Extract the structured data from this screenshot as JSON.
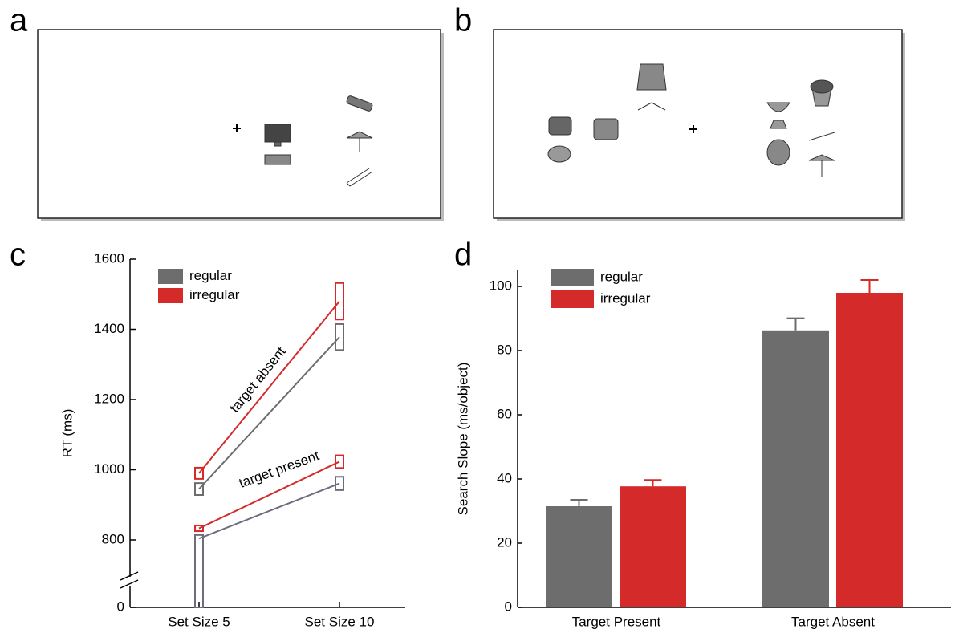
{
  "panel_labels": [
    "a",
    "b",
    "c",
    "d"
  ],
  "chart_data": [
    {
      "type": "line",
      "categories": [
        "Set Size 5",
        "Set Size 10"
      ],
      "ylabel": "RT (ms)",
      "ylim": [
        0,
        1600
      ],
      "yticks": [
        0,
        800,
        1000,
        1200,
        1400,
        1600
      ],
      "axis_break": true,
      "series": [
        {
          "name": "regular",
          "color": "#6d6d6d",
          "values": [
            945,
            1378
          ],
          "errors": [
            17,
            37
          ]
        },
        {
          "name": "irregular",
          "color": "#d42a2a",
          "values": [
            990,
            1480
          ],
          "errors": [
            16,
            52
          ]
        },
        {
          "name": "regular",
          "color": "#6d6d7d",
          "values": [
            804,
            961
          ],
          "errors": [
            10,
            19
          ]
        },
        {
          "name": "irregular",
          "color": "#d42a2a",
          "values": [
            833,
            1023
          ],
          "errors": [
            8,
            18
          ]
        }
      ],
      "annotations": [
        "target absent",
        "target present"
      ]
    },
    {
      "type": "bar",
      "categories": [
        "Target Present",
        "Target Absent"
      ],
      "ylabel": "Search Slope (ms/object)",
      "ylim": [
        0,
        105
      ],
      "yticks": [
        0,
        20,
        40,
        60,
        80,
        100
      ],
      "series": [
        {
          "name": "regular",
          "color": "#6d6d6d",
          "values": [
            31.5,
            86.3
          ],
          "errors": [
            2,
            3.8
          ]
        },
        {
          "name": "irregular",
          "color": "#d42a2a",
          "values": [
            37.7,
            98
          ],
          "errors": [
            2,
            4
          ]
        }
      ]
    }
  ]
}
